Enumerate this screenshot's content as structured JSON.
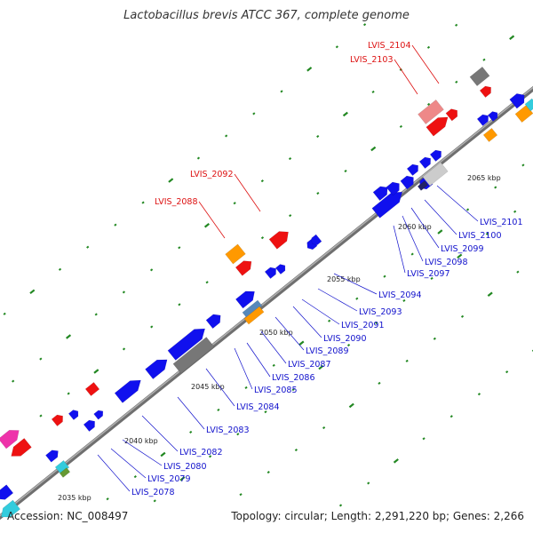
{
  "title": "Lactobacillus brevis ATCC 367, complete genome",
  "accession_label": "Accession: NC_008497",
  "summary_label": "Topology: circular; Length: 2,291,220 bp; Genes: 2,266",
  "colors": {
    "backbone": "#8a8a8a",
    "cds": "#1010ee",
    "rrna": "#ee1111",
    "trna_pink": "#ee8888",
    "orange": "#ff9900",
    "gray": "#777777",
    "light_gray": "#cccccc",
    "magenta": "#ee33aa",
    "cyan": "#33ccdd",
    "label_blue": "#1111cc",
    "label_red": "#dd1111",
    "tick": "#228822"
  },
  "scale_labels": [
    "2035 kbp",
    "2040 kbp",
    "2045 kbp",
    "2050 kbp",
    "2055 kbp",
    "2060 kbp",
    "2065 kbp"
  ],
  "gene_labels_blue": [
    "LVIS_2078",
    "LVIS_2079",
    "LVIS_2080",
    "LVIS_2082",
    "LVIS_2083",
    "LVIS_2084",
    "LVIS_2085",
    "LVIS_2086",
    "LVIS_2087",
    "LVIS_2089",
    "LVIS_2090",
    "LVIS_2091",
    "LVIS_2093",
    "LVIS_2094",
    "LVIS_2097",
    "LVIS_2098",
    "LVIS_2099",
    "LVIS_2100",
    "LVIS_2101"
  ],
  "gene_labels_red": [
    "LVIS_2088",
    "LVIS_2092",
    "LVIS_2103",
    "LVIS_2104"
  ]
}
